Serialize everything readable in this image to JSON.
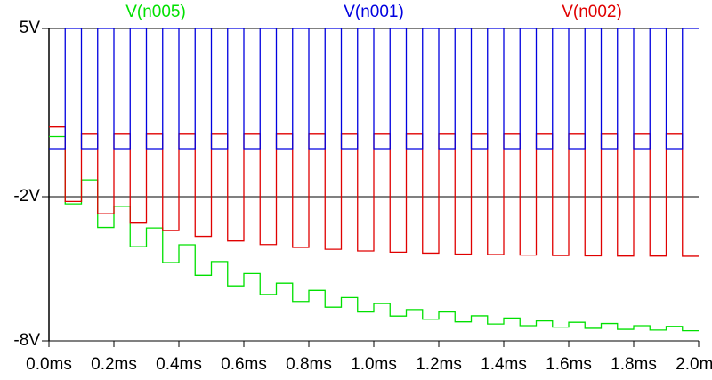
{
  "chart_data": {
    "type": "line",
    "x": [
      0,
      0.05,
      0.05,
      0.1,
      0.1,
      0.15,
      0.15,
      0.2,
      0.2,
      0.25,
      0.25,
      0.3,
      0.3,
      0.35,
      0.35,
      0.4,
      0.4,
      0.45,
      0.45,
      0.5,
      0.5,
      0.55,
      0.55,
      0.6,
      0.6,
      0.65,
      0.65,
      0.7,
      0.7,
      0.75,
      0.75,
      0.8,
      0.8,
      0.85,
      0.85,
      0.9,
      0.9,
      0.95,
      0.95,
      1.0,
      1.0,
      1.05,
      1.05,
      1.1,
      1.1,
      1.15,
      1.15,
      1.2,
      1.2,
      1.25,
      1.25,
      1.3,
      1.3,
      1.35,
      1.35,
      1.4,
      1.4,
      1.45,
      1.45,
      1.5,
      1.5,
      1.55,
      1.55,
      1.6,
      1.6,
      1.65,
      1.65,
      1.7,
      1.7,
      1.75,
      1.75,
      1.8,
      1.8,
      1.85,
      1.85,
      1.9,
      1.9,
      1.95,
      1.95,
      2.0
    ],
    "series": [
      {
        "name": "V(n005)",
        "color": "#00e000",
        "values": [
          0.5,
          0.5,
          -2.3,
          -2.3,
          -1.3,
          -1.3,
          -3.28,
          -3.28,
          -2.4,
          -2.4,
          -4.08,
          -4.08,
          -3.3,
          -3.3,
          -4.74,
          -4.74,
          -4.0,
          -4.0,
          -5.27,
          -5.27,
          -4.7,
          -4.7,
          -5.71,
          -5.71,
          -5.2,
          -5.2,
          -6.07,
          -6.07,
          -5.6,
          -5.6,
          -6.36,
          -6.36,
          -5.9,
          -5.9,
          -6.6,
          -6.6,
          -6.2,
          -6.2,
          -6.8,
          -6.8,
          -6.45,
          -6.45,
          -6.97,
          -6.97,
          -6.7,
          -6.7,
          -7.1,
          -7.1,
          -6.8,
          -6.8,
          -7.21,
          -7.21,
          -6.96,
          -6.96,
          -7.3,
          -7.3,
          -7.05,
          -7.05,
          -7.37,
          -7.37,
          -7.17,
          -7.17,
          -7.43,
          -7.43,
          -7.23,
          -7.23,
          -7.48,
          -7.48,
          -7.28,
          -7.28,
          -7.52,
          -7.52,
          -7.37,
          -7.37,
          -7.55,
          -7.55,
          -7.4,
          -7.4,
          -7.58,
          -7.58
        ]
      },
      {
        "name": "V(n001)",
        "color": "#0000e0",
        "values": [
          0,
          0,
          5,
          5,
          0,
          0,
          5,
          5,
          0,
          0,
          5,
          5,
          0,
          0,
          5,
          5,
          0,
          0,
          5,
          5,
          0,
          0,
          5,
          5,
          0,
          0,
          5,
          5,
          0,
          0,
          5,
          5,
          0,
          0,
          5,
          5,
          0,
          0,
          5,
          5,
          0,
          0,
          5,
          5,
          0,
          0,
          5,
          5,
          0,
          0,
          5,
          5,
          0,
          0,
          5,
          5,
          0,
          0,
          5,
          5,
          0,
          0,
          5,
          5,
          0,
          0,
          5,
          5,
          0,
          0,
          5,
          5,
          0,
          0,
          5,
          5,
          0,
          0,
          5,
          5
        ]
      },
      {
        "name": "V(n002)",
        "color": "#e00000",
        "values": [
          0.9,
          0.9,
          -2.2,
          -2.2,
          0.6,
          0.6,
          -2.71,
          -2.71,
          0.6,
          0.6,
          -3.1,
          -3.1,
          0.6,
          0.6,
          -3.41,
          -3.41,
          0.6,
          0.6,
          -3.65,
          -3.65,
          0.6,
          0.6,
          -3.84,
          -3.84,
          0.6,
          0.6,
          -3.99,
          -3.99,
          0.6,
          0.6,
          -4.11,
          -4.11,
          0.6,
          0.6,
          -4.19,
          -4.19,
          0.6,
          0.6,
          -4.26,
          -4.26,
          0.6,
          0.6,
          -4.31,
          -4.31,
          0.6,
          0.6,
          -4.35,
          -4.35,
          0.6,
          0.6,
          -4.39,
          -4.39,
          0.6,
          0.6,
          -4.41,
          -4.41,
          0.6,
          0.6,
          -4.43,
          -4.43,
          0.6,
          0.6,
          -4.45,
          -4.45,
          0.6,
          0.6,
          -4.46,
          -4.46,
          0.6,
          0.6,
          -4.47,
          -4.47,
          0.6,
          0.6,
          -4.47,
          -4.47,
          0.6,
          0.6,
          -4.48,
          -4.48
        ]
      }
    ],
    "xlim": [
      0,
      2.0
    ],
    "xticks": [
      {
        "value": 0,
        "label": "0.0ms"
      },
      {
        "value": 0.2,
        "label": "0.2ms"
      },
      {
        "value": 0.4,
        "label": "0.4ms"
      },
      {
        "value": 0.6,
        "label": "0.6ms"
      },
      {
        "value": 0.8,
        "label": "0.8ms"
      },
      {
        "value": 1.0,
        "label": "1.0ms"
      },
      {
        "value": 1.2,
        "label": "1.2ms"
      },
      {
        "value": 1.4,
        "label": "1.4ms"
      },
      {
        "value": 1.6,
        "label": "1.6ms"
      },
      {
        "value": 1.8,
        "label": "1.8ms"
      },
      {
        "value": 2.0,
        "label": "2.0ms"
      }
    ],
    "ylim": [
      -8,
      5
    ],
    "yticks": [
      {
        "value": 5,
        "label": "5V"
      },
      {
        "value": -2,
        "label": "-2V"
      },
      {
        "value": -8,
        "label": "-8V"
      }
    ]
  }
}
